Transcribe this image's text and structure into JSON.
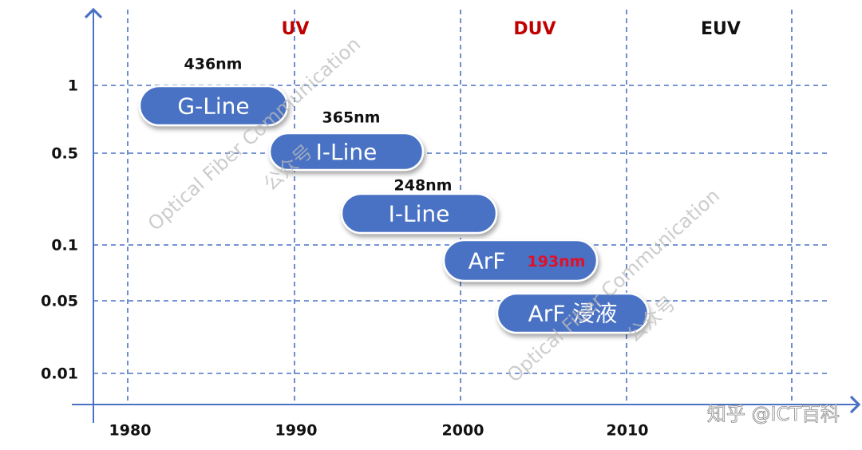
{
  "y_labels": [
    "1",
    "0.5",
    "0.1",
    "0.05",
    "0.01"
  ],
  "x_labels": [
    "1980",
    "1990",
    "2000",
    "2010"
  ],
  "regions": [
    "UV",
    "DUV",
    "EUV"
  ],
  "bars": [
    {
      "label": "G-Line",
      "note": "436nm"
    },
    {
      "label": "I-Line",
      "note": "365nm"
    },
    {
      "label": "I-Line",
      "note": "248nm"
    },
    {
      "label": "ArF",
      "note": "193nm"
    },
    {
      "label": "ArF 浸液"
    }
  ],
  "watermarks": [
    "Optical Fiber Communication",
    "公众号",
    "Optical Fiber Communication",
    "公众号"
  ],
  "credit": "知乎 @ICT百科"
}
